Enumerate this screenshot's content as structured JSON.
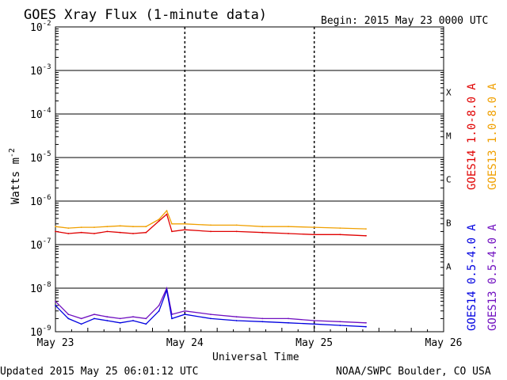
{
  "header": {
    "title": "GOES Xray Flux (1-minute data)",
    "begin": "Begin:  2015 May 23 0000 UTC"
  },
  "footer": {
    "updated": "Updated 2015 May 25 06:01:12 UTC",
    "credit": "NOAA/SWPC Boulder, CO USA"
  },
  "chart_data": {
    "type": "line",
    "title": "GOES Xray Flux (1-minute data)",
    "xlabel": "Universal Time",
    "ylabel_base": "Watts m",
    "ylabel_exp": "-2",
    "yscale": "log",
    "ylim": [
      1e-09,
      0.01
    ],
    "xlim": [
      0,
      3
    ],
    "x_ticks": [
      {
        "x": 0,
        "label": "May 23"
      },
      {
        "x": 1,
        "label": "May 24"
      },
      {
        "x": 2,
        "label": "May 25"
      },
      {
        "x": 3,
        "label": "May 26"
      }
    ],
    "y_ticks": [
      {
        "exp": -9,
        "label": "-9"
      },
      {
        "exp": -8,
        "label": "-8"
      },
      {
        "exp": -7,
        "label": "-7"
      },
      {
        "exp": -6,
        "label": "-6"
      },
      {
        "exp": -5,
        "label": "-5"
      },
      {
        "exp": -4,
        "label": "-4"
      },
      {
        "exp": -3,
        "label": "-3"
      },
      {
        "exp": -2,
        "label": "-2"
      }
    ],
    "flare_classes": [
      {
        "label": "A",
        "exp": -7.5
      },
      {
        "label": "B",
        "exp": -6.5
      },
      {
        "label": "C",
        "exp": -5.5
      },
      {
        "label": "M",
        "exp": -4.5
      },
      {
        "label": "X",
        "exp": -3.5
      }
    ],
    "legend": [
      {
        "name": "GOES14 1.0-8.0 A",
        "color": "#e00000"
      },
      {
        "name": "GOES13 1.0-8.0 A",
        "color": "#f0a000"
      },
      {
        "name": "GOES14 0.5-4.0 A",
        "color": "#0000e0"
      },
      {
        "name": "GOES13 0.5-4.0 A",
        "color": "#7010c0"
      }
    ],
    "series": [
      {
        "name": "GOES14 1.0-8.0 A",
        "color": "#e00000",
        "x": [
          0.0,
          0.1,
          0.2,
          0.3,
          0.4,
          0.5,
          0.6,
          0.7,
          0.8,
          0.86,
          0.9,
          1.0,
          1.2,
          1.4,
          1.6,
          1.8,
          2.0,
          2.2,
          2.4
        ],
        "y": [
          2e-07,
          1.8e-07,
          1.9e-07,
          1.8e-07,
          2e-07,
          1.9e-07,
          1.8e-07,
          1.9e-07,
          3.5e-07,
          5e-07,
          2e-07,
          2.2e-07,
          2e-07,
          2e-07,
          1.9e-07,
          1.8e-07,
          1.7e-07,
          1.7e-07,
          1.6e-07
        ]
      },
      {
        "name": "GOES13 1.0-8.0 A",
        "color": "#f0a000",
        "x": [
          0.0,
          0.1,
          0.2,
          0.3,
          0.4,
          0.5,
          0.6,
          0.7,
          0.8,
          0.86,
          0.9,
          1.0,
          1.2,
          1.4,
          1.6,
          1.8,
          2.0,
          2.2,
          2.4
        ],
        "y": [
          2.6e-07,
          2.4e-07,
          2.5e-07,
          2.5e-07,
          2.6e-07,
          2.7e-07,
          2.6e-07,
          2.6e-07,
          3.8e-07,
          6e-07,
          3e-07,
          3e-07,
          2.8e-07,
          2.8e-07,
          2.6e-07,
          2.6e-07,
          2.5e-07,
          2.4e-07,
          2.3e-07
        ]
      },
      {
        "name": "GOES14 0.5-4.0 A",
        "color": "#0000e0",
        "x": [
          0.0,
          0.1,
          0.2,
          0.3,
          0.4,
          0.5,
          0.6,
          0.7,
          0.8,
          0.86,
          0.9,
          1.0,
          1.2,
          1.4,
          1.6,
          1.8,
          2.0,
          2.2,
          2.4
        ],
        "y": [
          4e-09,
          2e-09,
          1.5e-09,
          2e-09,
          1.8e-09,
          1.6e-09,
          1.8e-09,
          1.5e-09,
          3e-09,
          9e-09,
          2e-09,
          2.5e-09,
          2e-09,
          1.8e-09,
          1.7e-09,
          1.6e-09,
          1.5e-09,
          1.4e-09,
          1.3e-09
        ]
      },
      {
        "name": "GOES13 0.5-4.0 A",
        "color": "#7010c0",
        "x": [
          0.0,
          0.1,
          0.2,
          0.3,
          0.4,
          0.5,
          0.6,
          0.7,
          0.8,
          0.86,
          0.9,
          1.0,
          1.2,
          1.4,
          1.6,
          1.8,
          2.0,
          2.2,
          2.4
        ],
        "y": [
          5e-09,
          2.5e-09,
          2e-09,
          2.5e-09,
          2.2e-09,
          2e-09,
          2.2e-09,
          2e-09,
          4e-09,
          1e-08,
          2.5e-09,
          3e-09,
          2.5e-09,
          2.2e-09,
          2e-09,
          2e-09,
          1.8e-09,
          1.7e-09,
          1.6e-09
        ]
      }
    ]
  }
}
